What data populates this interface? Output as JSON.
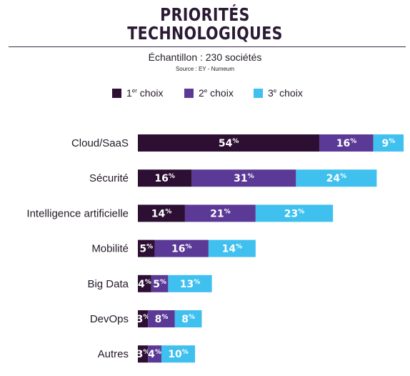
{
  "header": {
    "title_line1": "PRIORITÉS",
    "title_line2": "TECHNOLOGIQUES",
    "subtitle": "Échantillon : 230 sociétés",
    "source": "Source : EY - Numeum"
  },
  "legend": [
    {
      "prefix": "1",
      "sup": "er",
      "suffix": " choix",
      "color": "#2d0f33"
    },
    {
      "prefix": "2",
      "sup": "e",
      "suffix": " choix",
      "color": "#5b3996"
    },
    {
      "prefix": "3",
      "sup": "e",
      "suffix": " choix",
      "color": "#3fc0ee"
    }
  ],
  "chart_data": {
    "type": "bar",
    "orientation": "horizontal",
    "stacked": true,
    "categories": [
      "Cloud/SaaS",
      "Sécurité",
      "Intelligence artificielle",
      "Mobilité",
      "Big Data",
      "DevOps",
      "Autres"
    ],
    "series": [
      {
        "name": "1er choix",
        "color": "#2d0f33",
        "values": [
          54,
          16,
          14,
          5,
          4,
          3,
          3
        ]
      },
      {
        "name": "2e choix",
        "color": "#5b3996",
        "values": [
          16,
          31,
          21,
          16,
          5,
          8,
          4
        ]
      },
      {
        "name": "3e choix",
        "color": "#3fc0ee",
        "values": [
          9,
          24,
          23,
          14,
          13,
          8,
          10
        ]
      }
    ],
    "value_suffix": "%",
    "grid": false,
    "legend_position": "top"
  }
}
